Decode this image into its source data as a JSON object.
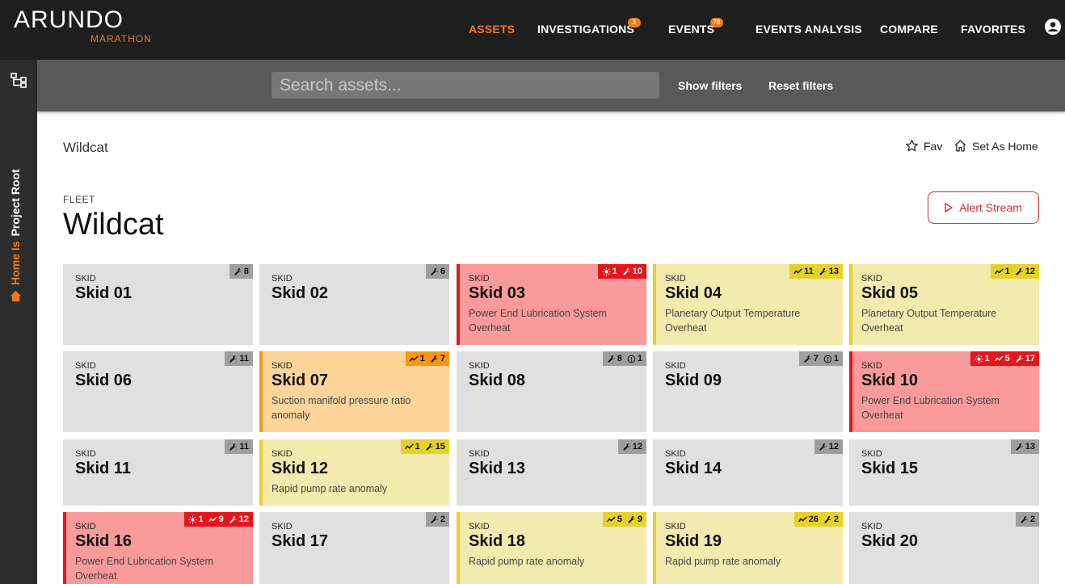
{
  "header": {
    "logo": "ARUNDO",
    "logo_sub": "MARATHON",
    "nav": [
      {
        "label": "ASSETS",
        "badge": null
      },
      {
        "label": "INVESTIGATIONS",
        "badge": "3"
      },
      {
        "label": "EVENTS",
        "badge": "78"
      },
      {
        "label": "EVENTS ANALYSIS",
        "badge": null
      },
      {
        "label": "COMPARE",
        "badge": null
      },
      {
        "label": "FAVORITES",
        "badge": null
      }
    ],
    "active_nav": "ASSETS"
  },
  "sidebar": {
    "home_label": "Home Is",
    "root_label": "Project Root"
  },
  "filters": {
    "search_placeholder": "Search assets...",
    "search_value": "",
    "show_filters": "Show filters",
    "reset_filters": "Reset filters"
  },
  "page": {
    "breadcrumb": "Wildcat",
    "fav_label": "Fav",
    "home_label": "Set As Home",
    "type_label": "FLEET",
    "title": "Wildcat",
    "alert_stream_label": "Alert Stream"
  },
  "colors": {
    "accent": "#f07a1e",
    "alert_red": "#e8141b",
    "warn_yellow": "#e6d12a",
    "warn_orange": "#f79516"
  },
  "skids": [
    {
      "type": "SKID",
      "name": "Skid 01",
      "status": "normal",
      "desc": "",
      "badges": [
        {
          "icon": "wrench-icon",
          "count": "8"
        }
      ]
    },
    {
      "type": "SKID",
      "name": "Skid 02",
      "status": "normal",
      "desc": "",
      "badges": [
        {
          "icon": "wrench-icon",
          "count": "6"
        }
      ]
    },
    {
      "type": "SKID",
      "name": "Skid 03",
      "status": "red",
      "desc": "Power End Lubrication System Overheat",
      "badges": [
        {
          "icon": "sun-icon",
          "count": "1"
        },
        {
          "icon": "wrench-icon",
          "count": "10"
        }
      ]
    },
    {
      "type": "SKID",
      "name": "Skid 04",
      "status": "yellow",
      "desc": "Planetary Output Temperature Overheat",
      "badges": [
        {
          "icon": "trend-icon",
          "count": "11"
        },
        {
          "icon": "wrench-icon",
          "count": "13"
        }
      ]
    },
    {
      "type": "SKID",
      "name": "Skid 05",
      "status": "yellow",
      "desc": "Planetary Output Temperature Overheat",
      "badges": [
        {
          "icon": "trend-icon",
          "count": "1"
        },
        {
          "icon": "wrench-icon",
          "count": "12"
        }
      ]
    },
    {
      "type": "SKID",
      "name": "Skid 06",
      "status": "normal",
      "desc": "",
      "badges": [
        {
          "icon": "wrench-icon",
          "count": "11"
        }
      ]
    },
    {
      "type": "SKID",
      "name": "Skid 07",
      "status": "orange",
      "desc": "Suction manifold pressure ratio anomaly",
      "badges": [
        {
          "icon": "trend-icon",
          "count": "1"
        },
        {
          "icon": "wrench-icon",
          "count": "7"
        }
      ]
    },
    {
      "type": "SKID",
      "name": "Skid 08",
      "status": "normal",
      "desc": "",
      "badges": [
        {
          "icon": "wrench-icon",
          "count": "8"
        },
        {
          "icon": "info-icon",
          "count": "1"
        }
      ]
    },
    {
      "type": "SKID",
      "name": "Skid 09",
      "status": "normal",
      "desc": "",
      "badges": [
        {
          "icon": "wrench-icon",
          "count": "7"
        },
        {
          "icon": "info-icon",
          "count": "1"
        }
      ]
    },
    {
      "type": "SKID",
      "name": "Skid 10",
      "status": "red",
      "desc": "Power End Lubrication System Overheat",
      "badges": [
        {
          "icon": "sun-icon",
          "count": "1"
        },
        {
          "icon": "trend-icon",
          "count": "5"
        },
        {
          "icon": "wrench-icon",
          "count": "17"
        }
      ]
    },
    {
      "type": "SKID",
      "name": "Skid 11",
      "status": "normal",
      "desc": "",
      "badges": [
        {
          "icon": "wrench-icon",
          "count": "11"
        }
      ]
    },
    {
      "type": "SKID",
      "name": "Skid 12",
      "status": "yellow",
      "desc": "Rapid pump rate anomaly",
      "badges": [
        {
          "icon": "trend-icon",
          "count": "1"
        },
        {
          "icon": "wrench-icon",
          "count": "15"
        }
      ]
    },
    {
      "type": "SKID",
      "name": "Skid 13",
      "status": "normal",
      "desc": "",
      "badges": [
        {
          "icon": "wrench-icon",
          "count": "12"
        }
      ]
    },
    {
      "type": "SKID",
      "name": "Skid 14",
      "status": "normal",
      "desc": "",
      "badges": [
        {
          "icon": "wrench-icon",
          "count": "12"
        }
      ]
    },
    {
      "type": "SKID",
      "name": "Skid 15",
      "status": "normal",
      "desc": "",
      "badges": [
        {
          "icon": "wrench-icon",
          "count": "13"
        }
      ]
    },
    {
      "type": "SKID",
      "name": "Skid 16",
      "status": "red",
      "desc": "Power End Lubrication System Overheat",
      "badges": [
        {
          "icon": "sun-icon",
          "count": "1"
        },
        {
          "icon": "trend-icon",
          "count": "9"
        },
        {
          "icon": "wrench-icon",
          "count": "12"
        }
      ]
    },
    {
      "type": "SKID",
      "name": "Skid 17",
      "status": "normal",
      "desc": "",
      "badges": [
        {
          "icon": "wrench-icon",
          "count": "2"
        }
      ]
    },
    {
      "type": "SKID",
      "name": "Skid 18",
      "status": "yellow",
      "desc": "Rapid pump rate anomaly",
      "badges": [
        {
          "icon": "trend-icon",
          "count": "5"
        },
        {
          "icon": "wrench-icon",
          "count": "9"
        }
      ]
    },
    {
      "type": "SKID",
      "name": "Skid 19",
      "status": "yellow",
      "desc": "Rapid pump rate anomaly",
      "badges": [
        {
          "icon": "trend-icon",
          "count": "26"
        },
        {
          "icon": "wrench-icon",
          "count": "2"
        }
      ]
    },
    {
      "type": "SKID",
      "name": "Skid 20",
      "status": "normal",
      "desc": "",
      "badges": [
        {
          "icon": "wrench-icon",
          "count": "2"
        }
      ]
    }
  ]
}
